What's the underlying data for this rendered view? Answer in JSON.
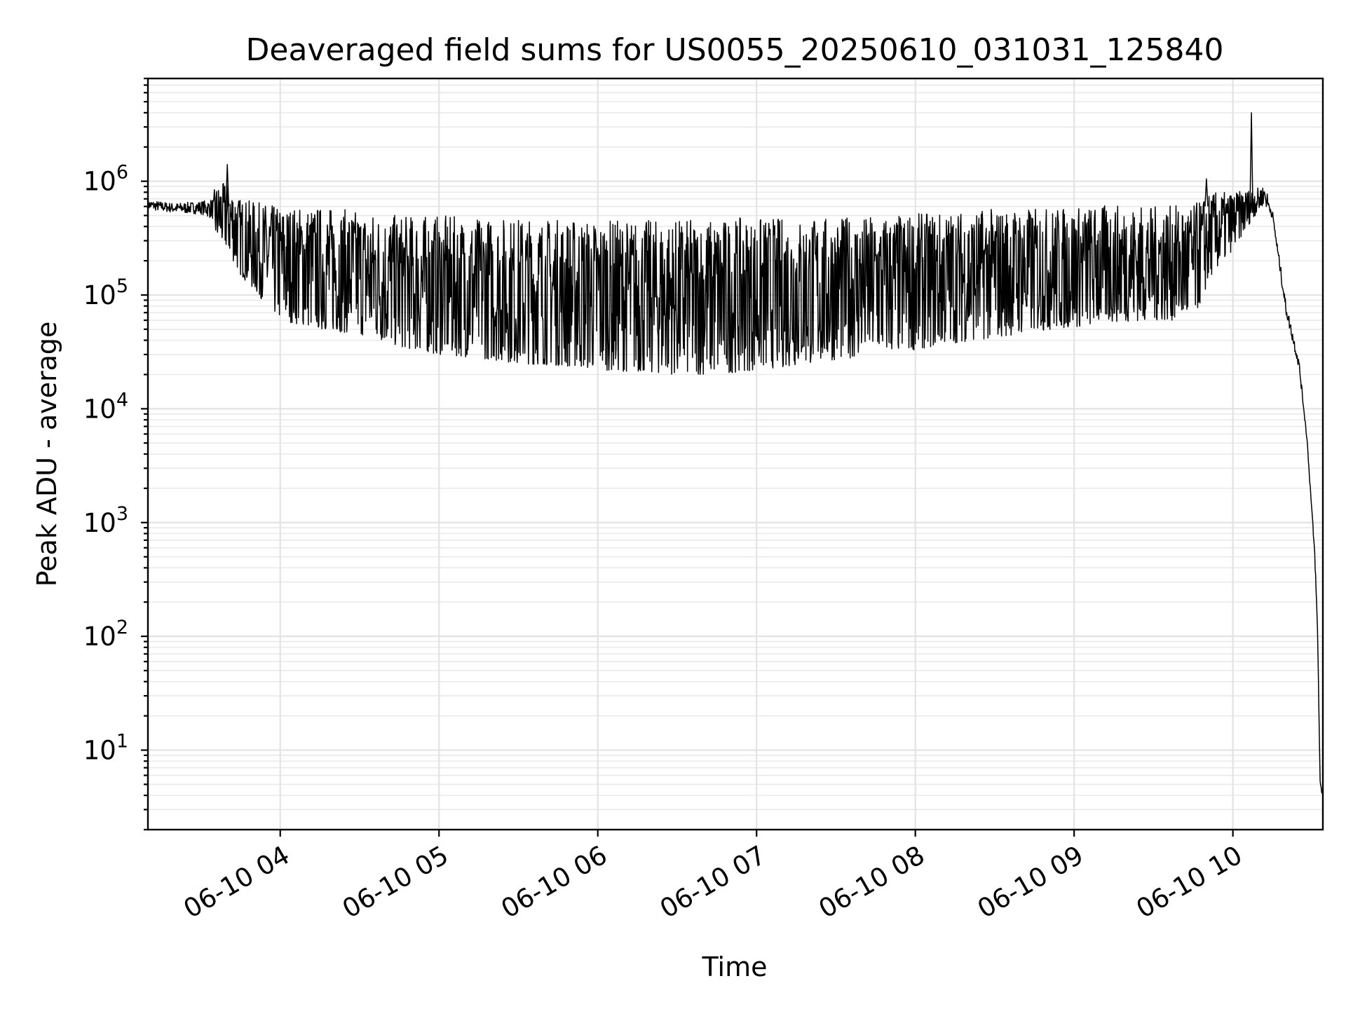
{
  "chart_data": {
    "type": "line",
    "title": "Deaveraged field sums for US0055_20250610_031031_125840",
    "xlabel": "Time",
    "ylabel": "Peak ADU - average",
    "yscale": "log",
    "ylim": [
      2,
      8000000
    ],
    "xlim": [
      "06-10 03:10",
      "06-10 10:34"
    ],
    "grid": true,
    "line_color": "#000000",
    "x_ticks": [
      {
        "label": "06-10 04",
        "value": "06-10 04:00"
      },
      {
        "label": "06-10 05",
        "value": "06-10 05:00"
      },
      {
        "label": "06-10 06",
        "value": "06-10 06:00"
      },
      {
        "label": "06-10 07",
        "value": "06-10 07:00"
      },
      {
        "label": "06-10 08",
        "value": "06-10 08:00"
      },
      {
        "label": "06-10 09",
        "value": "06-10 09:00"
      },
      {
        "label": "06-10 10",
        "value": "06-10 10:00"
      }
    ],
    "y_ticks": [
      {
        "base": "10",
        "exp": "1",
        "value": 10
      },
      {
        "base": "10",
        "exp": "2",
        "value": 100
      },
      {
        "base": "10",
        "exp": "3",
        "value": 1000
      },
      {
        "base": "10",
        "exp": "4",
        "value": 10000
      },
      {
        "base": "10",
        "exp": "5",
        "value": 100000
      },
      {
        "base": "10",
        "exp": "6",
        "value": 1000000
      }
    ],
    "series": [
      {
        "x": [
          "06-10 03:10",
          "06-10 03:20",
          "06-10 03:30",
          "06-10 03:40",
          "06-10 03:45",
          "06-10 04:00",
          "06-10 04:15",
          "06-10 04:30",
          "06-10 04:45",
          "06-10 05:00",
          "06-10 05:15",
          "06-10 05:30",
          "06-10 05:45",
          "06-10 06:00",
          "06-10 06:15",
          "06-10 06:30",
          "06-10 06:45",
          "06-10 07:00",
          "06-10 07:15",
          "06-10 07:30",
          "06-10 07:45",
          "06-10 08:00",
          "06-10 08:15",
          "06-10 08:30",
          "06-10 08:45",
          "06-10 09:00",
          "06-10 09:15",
          "06-10 09:30",
          "06-10 09:45",
          "06-10 09:52",
          "06-10 10:00",
          "06-10 10:07",
          "06-10 10:12",
          "06-10 10:15",
          "06-10 10:20",
          "06-10 10:25",
          "06-10 10:28",
          "06-10 10:31",
          "06-10 10:32",
          "06-10 10:33",
          "06-10 10:34"
        ],
        "low": [
          480000,
          450000,
          420000,
          250000,
          150000,
          60000,
          50000,
          45000,
          35000,
          30000,
          28000,
          25000,
          24000,
          22000,
          21000,
          20000,
          20000,
          22000,
          24000,
          27000,
          30000,
          33000,
          38000,
          42000,
          48000,
          52000,
          58000,
          60000,
          60000,
          150000,
          250000,
          450000,
          650000,
          420000,
          60000,
          20000,
          5000,
          400,
          100,
          4,
          4
        ],
        "high": [
          750000,
          700000,
          750000,
          1000000,
          700000,
          600000,
          600000,
          550000,
          500000,
          500000,
          480000,
          480000,
          470000,
          460000,
          460000,
          460000,
          470000,
          480000,
          480000,
          480000,
          500000,
          520000,
          550000,
          580000,
          580000,
          600000,
          620000,
          600000,
          620000,
          800000,
          800000,
          850000,
          900000,
          600000,
          100000,
          30000,
          6000,
          600,
          120,
          6,
          4
        ]
      }
    ],
    "peaks": [
      {
        "x": "06-10 03:40",
        "y": 1400000
      },
      {
        "x": "06-10 09:50",
        "y": 1050000
      },
      {
        "x": "06-10 10:07",
        "y": 4000000
      }
    ]
  }
}
